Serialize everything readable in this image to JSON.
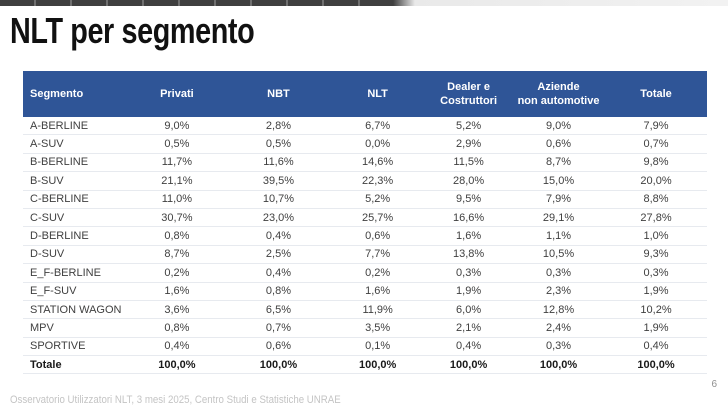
{
  "slide": {
    "title": "NLT per segmento",
    "footer": "Osservatorio Utilizzatori NLT, 3 mesi 2025, Centro Studi e Statistiche UNRAE",
    "page_number": "6"
  },
  "colors": {
    "header_bg": "#2F5597",
    "header_text": "#FFFFFF",
    "body_text": "#404040",
    "row_divider": "#E7EAEF",
    "footer_text": "#C4C4C4",
    "top_bar_dark": "#3F3F3F",
    "top_bar_light": "#F2F2F2"
  },
  "chart_data": {
    "type": "table",
    "title": "NLT per segmento",
    "columns": [
      "Segmento",
      "Privati",
      "NBT",
      "NLT",
      "Dealer e\nCostruttori",
      "Aziende\nnon automotive",
      "Totale"
    ],
    "column_widths_pct": [
      15.2,
      14.6,
      15.1,
      13.9,
      12.7,
      13.6,
      14.9
    ],
    "rows": [
      {
        "label": "A-BERLINE",
        "values": [
          "9,0%",
          "2,8%",
          "6,7%",
          "5,2%",
          "9,0%",
          "7,9%"
        ]
      },
      {
        "label": "A-SUV",
        "values": [
          "0,5%",
          "0,5%",
          "0,0%",
          "2,9%",
          "0,6%",
          "0,7%"
        ]
      },
      {
        "label": "B-BERLINE",
        "values": [
          "11,7%",
          "11,6%",
          "14,6%",
          "11,5%",
          "8,7%",
          "9,8%"
        ]
      },
      {
        "label": "B-SUV",
        "values": [
          "21,1%",
          "39,5%",
          "22,3%",
          "28,0%",
          "15,0%",
          "20,0%"
        ]
      },
      {
        "label": "C-BERLINE",
        "values": [
          "11,0%",
          "10,7%",
          "5,2%",
          "9,5%",
          "7,9%",
          "8,8%"
        ]
      },
      {
        "label": "C-SUV",
        "values": [
          "30,7%",
          "23,0%",
          "25,7%",
          "16,6%",
          "29,1%",
          "27,8%"
        ]
      },
      {
        "label": "D-BERLINE",
        "values": [
          "0,8%",
          "0,4%",
          "0,6%",
          "1,6%",
          "1,1%",
          "1,0%"
        ]
      },
      {
        "label": "D-SUV",
        "values": [
          "8,7%",
          "2,5%",
          "7,7%",
          "13,8%",
          "10,5%",
          "9,3%"
        ]
      },
      {
        "label": "E_F-BERLINE",
        "values": [
          "0,2%",
          "0,4%",
          "0,2%",
          "0,3%",
          "0,3%",
          "0,3%"
        ]
      },
      {
        "label": "E_F-SUV",
        "values": [
          "1,6%",
          "0,8%",
          "1,6%",
          "1,9%",
          "2,3%",
          "1,9%"
        ]
      },
      {
        "label": "STATION WAGON",
        "values": [
          "3,6%",
          "6,5%",
          "11,9%",
          "6,0%",
          "12,8%",
          "10,2%"
        ]
      },
      {
        "label": "MPV",
        "values": [
          "0,8%",
          "0,7%",
          "3,5%",
          "2,1%",
          "2,4%",
          "1,9%"
        ]
      },
      {
        "label": "SPORTIVE",
        "values": [
          "0,4%",
          "0,6%",
          "0,1%",
          "0,4%",
          "0,3%",
          "0,4%"
        ]
      }
    ],
    "total_row": {
      "label": "Totale",
      "values": [
        "100,0%",
        "100,0%",
        "100,0%",
        "100,0%",
        "100,0%",
        "100,0%"
      ]
    }
  }
}
